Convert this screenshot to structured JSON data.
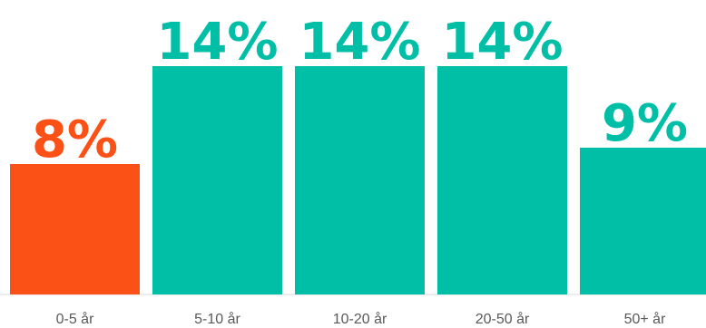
{
  "chart_data": {
    "type": "bar",
    "title": "",
    "xlabel": "",
    "ylabel": "",
    "categories": [
      "0-5 år",
      "5-10 år",
      "10-20 år",
      "20-50 år",
      "50+ år"
    ],
    "values": [
      8,
      14,
      14,
      14,
      9
    ],
    "value_labels": [
      "8%",
      "14%",
      "14%",
      "14%",
      "9%"
    ],
    "bar_colors": [
      "#fc5116",
      "#00bfa6",
      "#00bfa6",
      "#00bfa6",
      "#00bfa6"
    ],
    "ylim": [
      0,
      14
    ],
    "grid": false,
    "legend": false
  }
}
